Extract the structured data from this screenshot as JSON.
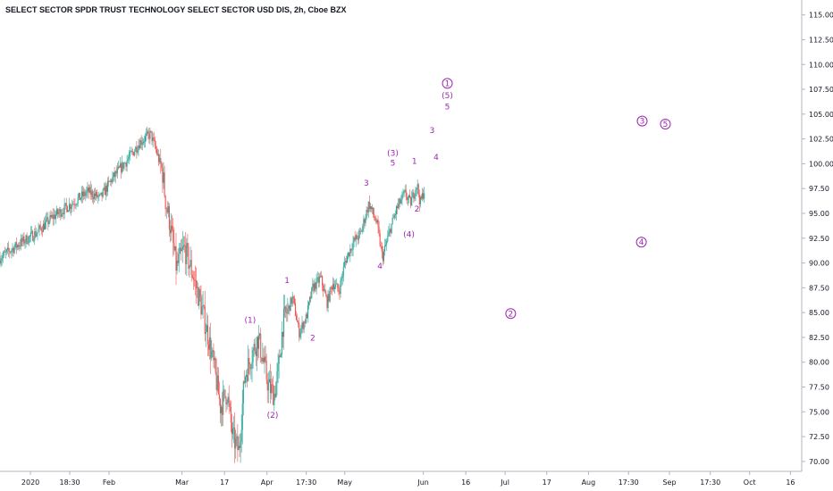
{
  "chart_data": {
    "type": "candlestick",
    "title": "SELECT SECTOR SPDR TRUST TECHNOLOGY SELECT SECTOR USD DIS, 2h, Cboe BZX",
    "ylim": [
      69,
      116.5
    ],
    "xlim": [
      0,
      100
    ],
    "y_ticks": [
      "115.00",
      "112.50",
      "110.00",
      "107.50",
      "105.00",
      "102.50",
      "100.00",
      "97.50",
      "95.00",
      "92.50",
      "90.00",
      "87.50",
      "85.00",
      "82.50",
      "80.00",
      "77.50",
      "75.00",
      "72.50",
      "70.00"
    ],
    "x_ticks": [
      {
        "label": "2020",
        "x": 3.8
      },
      {
        "label": "18:30",
        "x": 8.7
      },
      {
        "label": "Feb",
        "x": 13.6
      },
      {
        "label": "Mar",
        "x": 22.7
      },
      {
        "label": "17",
        "x": 28.0
      },
      {
        "label": "Apr",
        "x": 33.3
      },
      {
        "label": "17:30",
        "x": 38.2
      },
      {
        "label": "May",
        "x": 43.0
      },
      {
        "label": "Jun",
        "x": 52.8
      },
      {
        "label": "16",
        "x": 58.1
      },
      {
        "label": "Jul",
        "x": 63.0
      },
      {
        "label": "17",
        "x": 68.2
      },
      {
        "label": "Aug",
        "x": 73.4
      },
      {
        "label": "17:30",
        "x": 78.4
      },
      {
        "label": "Sep",
        "x": 83.5
      },
      {
        "label": "17:30",
        "x": 88.6
      },
      {
        "label": "Oct",
        "x": 93.5
      },
      {
        "label": "16",
        "x": 98.6
      }
    ],
    "price_path": [
      [
        0,
        90.5
      ],
      [
        2.5,
        92.0
      ],
      [
        4.5,
        93.0
      ],
      [
        6.5,
        94.6
      ],
      [
        9,
        96.0
      ],
      [
        11,
        97.2
      ],
      [
        12.5,
        96.5
      ],
      [
        14,
        98.5
      ],
      [
        16,
        100.5
      ],
      [
        17.5,
        102.2
      ],
      [
        18.8,
        103.0
      ],
      [
        19.6,
        101.0
      ],
      [
        20.3,
        99.0
      ],
      [
        20.6,
        96.5
      ],
      [
        21.2,
        94.0
      ],
      [
        22,
        89.5
      ],
      [
        23,
        91.5
      ],
      [
        24,
        89.0
      ],
      [
        25,
        86.0
      ],
      [
        26,
        82.5
      ],
      [
        26.8,
        79.0
      ],
      [
        27.5,
        75.5
      ],
      [
        28.3,
        77.0
      ],
      [
        29,
        72.5
      ],
      [
        29.8,
        71.0
      ],
      [
        30.5,
        78.5
      ],
      [
        31.3,
        80.5
      ],
      [
        32.2,
        82.5
      ],
      [
        33,
        79.5
      ],
      [
        33.5,
        77.5
      ],
      [
        34.2,
        76.8
      ],
      [
        34.7,
        79.0
      ],
      [
        35.3,
        84.0
      ],
      [
        36.5,
        86.5
      ],
      [
        37.3,
        83.0
      ],
      [
        38.2,
        84.5
      ],
      [
        39,
        87.5
      ],
      [
        40,
        88.5
      ],
      [
        40.8,
        86.0
      ],
      [
        41.5,
        88.0
      ],
      [
        42.3,
        87.2
      ],
      [
        43,
        90.0
      ],
      [
        44,
        92.0
      ],
      [
        45,
        93.0
      ],
      [
        46,
        96.0
      ],
      [
        47,
        94.0
      ],
      [
        47.7,
        90.5
      ],
      [
        48.7,
        93.5
      ],
      [
        49.5,
        95.5
      ],
      [
        50.5,
        97.0
      ],
      [
        51.2,
        96.0
      ],
      [
        52,
        98.0
      ],
      [
        52.4,
        96.0
      ],
      [
        53,
        97.5
      ]
    ],
    "wave_labels": [
      {
        "text": "(1)",
        "x": 31.2,
        "y": 84.0
      },
      {
        "text": "(2)",
        "x": 34.0,
        "y": 74.4
      },
      {
        "text": "1",
        "x": 35.8,
        "y": 88.0
      },
      {
        "text": "2",
        "x": 39.0,
        "y": 82.2
      },
      {
        "text": "3",
        "x": 45.7,
        "y": 97.8
      },
      {
        "text": "4",
        "x": 47.4,
        "y": 89.4
      },
      {
        "text": "(3)",
        "x": 49.0,
        "y": 100.8
      },
      {
        "text": "5",
        "x": 49.0,
        "y": 99.8
      },
      {
        "text": "1",
        "x": 51.7,
        "y": 100.0
      },
      {
        "text": "2",
        "x": 52.0,
        "y": 95.2
      },
      {
        "text": "(4)",
        "x": 51.0,
        "y": 92.6
      },
      {
        "text": "3",
        "x": 53.9,
        "y": 103.1
      },
      {
        "text": "4",
        "x": 54.4,
        "y": 100.4
      },
      {
        "text": "(5)",
        "x": 55.8,
        "y": 106.6
      },
      {
        "text": "5",
        "x": 55.8,
        "y": 105.5
      }
    ],
    "circled_labels": [
      {
        "text": "1",
        "x": 55.8,
        "y": 108.1
      },
      {
        "text": "2",
        "x": 63.7,
        "y": 84.9
      },
      {
        "text": "3",
        "x": 80.1,
        "y": 104.3
      },
      {
        "text": "4",
        "x": 80.0,
        "y": 92.1
      },
      {
        "text": "5",
        "x": 83.0,
        "y": 104.0
      }
    ]
  }
}
